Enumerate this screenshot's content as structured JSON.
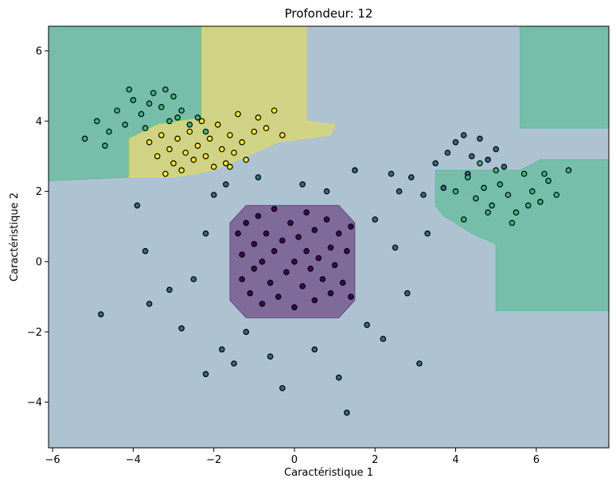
{
  "chart_data": {
    "type": "scatter",
    "title": "Profondeur: 12",
    "xlabel": "Caractéristique 1",
    "ylabel": "Caractéristique 2",
    "xlim": [
      -6.1,
      7.8
    ],
    "ylim": [
      -5.3,
      6.7
    ],
    "xticks": [
      -6,
      -4,
      -2,
      0,
      2,
      4,
      6
    ],
    "yticks": [
      -4,
      -2,
      0,
      2,
      4,
      6
    ],
    "xtick_labels": [
      "−6",
      "−4",
      "−2",
      "0",
      "2",
      "4",
      "6"
    ],
    "ytick_labels": [
      "−4",
      "−2",
      "0",
      "2",
      "4",
      "6"
    ],
    "grid": false,
    "classes": [
      {
        "name": "0",
        "color": "#440154"
      },
      {
        "name": "1",
        "color": "#31688e"
      },
      {
        "name": "2",
        "color": "#35b779"
      },
      {
        "name": "3",
        "color": "#fde725"
      }
    ],
    "background_color": "#31688e",
    "decision_regions": [
      {
        "class": "0",
        "color": "#440154",
        "polygon": [
          [
            -1.2,
            1.6
          ],
          [
            1.1,
            1.6
          ],
          [
            1.5,
            1.1
          ],
          [
            1.5,
            -1.1
          ],
          [
            1.1,
            -1.6
          ],
          [
            -1.2,
            -1.6
          ],
          [
            -1.6,
            -1.1
          ],
          [
            -1.6,
            1.1
          ]
        ]
      },
      {
        "class": "2",
        "color": "#35b779",
        "polygon": [
          [
            -6.1,
            6.7
          ],
          [
            -2.3,
            6.7
          ],
          [
            -2.3,
            4.1
          ],
          [
            -3.4,
            3.9
          ],
          [
            -4.1,
            3.5
          ],
          [
            -4.1,
            2.4
          ],
          [
            -6.1,
            2.3
          ]
        ]
      },
      {
        "class": "3",
        "color": "#fde725",
        "polygon": [
          [
            -2.3,
            6.7
          ],
          [
            0.3,
            6.7
          ],
          [
            0.3,
            4.0
          ],
          [
            1.0,
            3.9
          ],
          [
            0.9,
            3.6
          ],
          [
            -0.4,
            3.4
          ],
          [
            -1.2,
            3.0
          ],
          [
            -2.0,
            2.6
          ],
          [
            -3.0,
            2.4
          ],
          [
            -4.1,
            2.4
          ],
          [
            -4.1,
            3.5
          ],
          [
            -3.4,
            3.9
          ],
          [
            -2.3,
            4.1
          ]
        ]
      },
      {
        "class": "2",
        "color": "#35b779",
        "polygon": [
          [
            5.6,
            6.7
          ],
          [
            7.8,
            6.7
          ],
          [
            7.8,
            3.8
          ],
          [
            5.6,
            3.8
          ]
        ]
      },
      {
        "class": "2",
        "color": "#35b779",
        "polygon": [
          [
            3.5,
            2.6
          ],
          [
            5.6,
            2.6
          ],
          [
            6.1,
            2.9
          ],
          [
            7.8,
            2.9
          ],
          [
            7.8,
            -1.4
          ],
          [
            5.0,
            -1.4
          ],
          [
            5.0,
            0.5
          ],
          [
            4.4,
            0.8
          ],
          [
            4.0,
            1.1
          ],
          [
            3.7,
            1.3
          ],
          [
            3.5,
            1.6
          ]
        ]
      }
    ],
    "series": [
      {
        "name": "0",
        "color": "#440154",
        "points": [
          [
            -1.4,
            0.8
          ],
          [
            -1.3,
            0.2
          ],
          [
            -1.3,
            -0.5
          ],
          [
            -1.2,
            1.1
          ],
          [
            -1.1,
            -0.9
          ],
          [
            -1.0,
            0.5
          ],
          [
            -1.0,
            -0.2
          ],
          [
            -0.9,
            1.3
          ],
          [
            -0.8,
            0.0
          ],
          [
            -0.8,
            -1.2
          ],
          [
            -0.7,
            0.8
          ],
          [
            -0.6,
            -0.6
          ],
          [
            -0.5,
            0.3
          ],
          [
            -0.5,
            1.5
          ],
          [
            -0.4,
            -1.0
          ],
          [
            -0.3,
            0.6
          ],
          [
            -0.2,
            -0.3
          ],
          [
            -0.1,
            1.1
          ],
          [
            0.0,
            0.0
          ],
          [
            0.0,
            -1.3
          ],
          [
            0.1,
            0.7
          ],
          [
            0.2,
            -0.7
          ],
          [
            0.3,
            0.3
          ],
          [
            0.3,
            1.4
          ],
          [
            0.4,
            -0.2
          ],
          [
            0.5,
            0.9
          ],
          [
            0.5,
            -1.1
          ],
          [
            0.6,
            0.1
          ],
          [
            0.7,
            -0.5
          ],
          [
            0.8,
            1.2
          ],
          [
            0.9,
            0.4
          ],
          [
            0.9,
            -0.9
          ],
          [
            1.0,
            -0.1
          ],
          [
            1.1,
            0.8
          ],
          [
            1.2,
            -0.6
          ],
          [
            1.3,
            0.3
          ],
          [
            1.4,
            -1.0
          ],
          [
            1.4,
            1.0
          ]
        ]
      },
      {
        "name": "1",
        "color": "#31688e",
        "points": [
          [
            -4.8,
            -1.5
          ],
          [
            -3.9,
            1.6
          ],
          [
            -3.7,
            0.3
          ],
          [
            -3.6,
            -1.2
          ],
          [
            -3.1,
            -0.8
          ],
          [
            -2.8,
            -1.9
          ],
          [
            -2.5,
            -0.5
          ],
          [
            -2.2,
            0.8
          ],
          [
            -2.2,
            -3.2
          ],
          [
            -2.0,
            1.9
          ],
          [
            -1.8,
            -2.5
          ],
          [
            -1.7,
            2.2
          ],
          [
            -1.5,
            -2.9
          ],
          [
            -1.2,
            -2.0
          ],
          [
            -0.9,
            2.4
          ],
          [
            -0.6,
            -2.7
          ],
          [
            -0.3,
            -3.6
          ],
          [
            0.2,
            2.2
          ],
          [
            0.5,
            -2.5
          ],
          [
            0.8,
            2.0
          ],
          [
            1.1,
            -3.3
          ],
          [
            1.3,
            -4.3
          ],
          [
            1.5,
            2.6
          ],
          [
            1.8,
            -1.8
          ],
          [
            2.0,
            1.2
          ],
          [
            2.2,
            -2.2
          ],
          [
            2.5,
            0.4
          ],
          [
            2.8,
            -0.9
          ],
          [
            3.1,
            -2.9
          ],
          [
            3.3,
            0.8
          ],
          [
            2.4,
            2.5
          ],
          [
            2.6,
            2.0
          ],
          [
            2.9,
            2.4
          ],
          [
            3.2,
            1.9
          ],
          [
            3.5,
            2.8
          ],
          [
            3.8,
            3.1
          ],
          [
            4.0,
            3.4
          ],
          [
            4.2,
            3.6
          ],
          [
            4.4,
            3.0
          ],
          [
            4.6,
            3.5
          ],
          [
            4.8,
            2.9
          ],
          [
            5.0,
            3.2
          ],
          [
            5.2,
            2.7
          ],
          [
            4.3,
            2.5
          ],
          [
            3.7,
            2.1
          ]
        ]
      },
      {
        "name": "2",
        "color": "#35b779",
        "points": [
          [
            -5.2,
            3.5
          ],
          [
            -4.9,
            4.0
          ],
          [
            -4.6,
            3.7
          ],
          [
            -4.4,
            4.3
          ],
          [
            -4.2,
            3.9
          ],
          [
            -4.0,
            4.6
          ],
          [
            -3.8,
            4.2
          ],
          [
            -3.7,
            3.8
          ],
          [
            -3.5,
            4.8
          ],
          [
            -3.3,
            4.4
          ],
          [
            -3.1,
            4.0
          ],
          [
            -3.0,
            4.7
          ],
          [
            -2.8,
            4.3
          ],
          [
            -2.6,
            3.9
          ],
          [
            -2.4,
            4.1
          ],
          [
            -2.2,
            3.7
          ],
          [
            -4.7,
            3.3
          ],
          [
            -4.1,
            4.9
          ],
          [
            -3.6,
            4.5
          ],
          [
            -3.2,
            4.9
          ],
          [
            -2.9,
            4.1
          ],
          [
            4.0,
            2.0
          ],
          [
            4.3,
            2.4
          ],
          [
            4.5,
            1.8
          ],
          [
            4.7,
            2.1
          ],
          [
            4.9,
            1.6
          ],
          [
            5.1,
            2.2
          ],
          [
            5.3,
            1.9
          ],
          [
            5.5,
            1.4
          ],
          [
            5.7,
            2.5
          ],
          [
            5.9,
            2.0
          ],
          [
            6.1,
            1.7
          ],
          [
            6.3,
            2.3
          ],
          [
            6.5,
            1.9
          ],
          [
            6.8,
            2.6
          ],
          [
            4.2,
            1.2
          ],
          [
            4.6,
            2.8
          ],
          [
            5.0,
            2.6
          ],
          [
            5.4,
            1.1
          ],
          [
            5.8,
            1.6
          ],
          [
            6.2,
            2.5
          ],
          [
            4.8,
            1.4
          ]
        ]
      },
      {
        "name": "3",
        "color": "#fde725",
        "points": [
          [
            -3.6,
            3.4
          ],
          [
            -3.4,
            3.0
          ],
          [
            -3.3,
            3.6
          ],
          [
            -3.1,
            3.2
          ],
          [
            -3.0,
            2.8
          ],
          [
            -2.9,
            3.5
          ],
          [
            -2.7,
            3.1
          ],
          [
            -2.6,
            3.7
          ],
          [
            -2.5,
            2.9
          ],
          [
            -2.4,
            3.3
          ],
          [
            -2.3,
            4.0
          ],
          [
            -2.2,
            3.0
          ],
          [
            -2.1,
            3.5
          ],
          [
            -2.0,
            2.7
          ],
          [
            -1.9,
            3.9
          ],
          [
            -1.8,
            3.2
          ],
          [
            -1.7,
            2.8
          ],
          [
            -1.6,
            3.6
          ],
          [
            -1.5,
            3.1
          ],
          [
            -1.4,
            4.2
          ],
          [
            -1.3,
            3.4
          ],
          [
            -1.2,
            2.9
          ],
          [
            -1.0,
            3.7
          ],
          [
            -0.9,
            4.1
          ],
          [
            -0.7,
            3.8
          ],
          [
            -0.5,
            4.3
          ],
          [
            -0.3,
            3.6
          ],
          [
            -2.8,
            2.6
          ],
          [
            -3.2,
            2.5
          ],
          [
            -1.6,
            2.7
          ]
        ]
      }
    ]
  }
}
